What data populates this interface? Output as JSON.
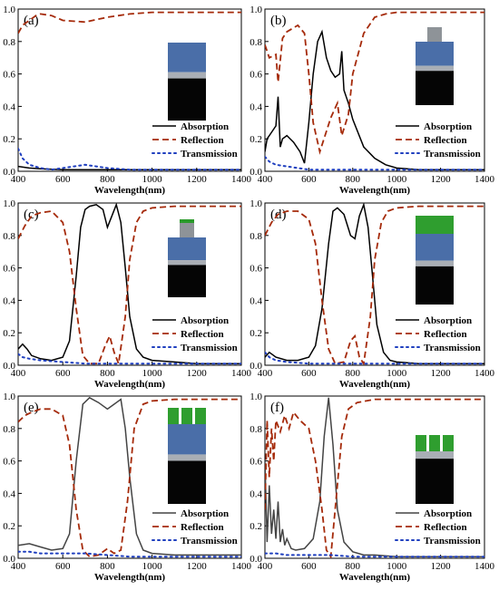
{
  "chart_data": [
    {
      "type": "line",
      "panel": "(a)",
      "xlabel": "Wavelength(nm)",
      "ylabel": "",
      "xlim": [
        400,
        1400
      ],
      "ylim": [
        0,
        1.0
      ],
      "xticks": [
        "400",
        "600",
        "800",
        "1000",
        "1200",
        "1400"
      ],
      "yticks": [
        "0.0",
        "0.2",
        "0.4",
        "0.6",
        "0.8",
        "1.0"
      ],
      "legend": "bottom-right",
      "series": [
        {
          "name": "Absorption",
          "style": "solid",
          "color": "#000000",
          "x": [
            400,
            450,
            500,
            600,
            700,
            800,
            900,
            1000,
            1200,
            1400
          ],
          "y": [
            0.03,
            0.02,
            0.015,
            0.01,
            0.01,
            0.01,
            0.01,
            0.01,
            0.01,
            0.01
          ]
        },
        {
          "name": "Reflection",
          "style": "dash",
          "color": "#a52a0a",
          "x": [
            400,
            420,
            450,
            480,
            500,
            550,
            600,
            700,
            800,
            900,
            1000,
            1200,
            1400
          ],
          "y": [
            0.85,
            0.9,
            0.93,
            0.96,
            0.97,
            0.96,
            0.93,
            0.92,
            0.95,
            0.97,
            0.98,
            0.98,
            0.98
          ]
        },
        {
          "name": "Transmission",
          "style": "dot",
          "color": "#1f3fbf",
          "x": [
            400,
            420,
            450,
            500,
            550,
            600,
            650,
            700,
            750,
            800,
            900,
            1000,
            1200,
            1400
          ],
          "y": [
            0.14,
            0.08,
            0.04,
            0.02,
            0.01,
            0.02,
            0.03,
            0.04,
            0.03,
            0.02,
            0.01,
            0.01,
            0.01,
            0.01
          ]
        }
      ]
    },
    {
      "type": "line",
      "panel": "(b)",
      "xlabel": "Wavelength(nm)",
      "ylabel": "",
      "xlim": [
        400,
        1400
      ],
      "ylim": [
        0,
        1.0
      ],
      "xticks": [
        "400",
        "600",
        "800",
        "1000",
        "1200",
        "1400"
      ],
      "yticks": [
        "0.0",
        "0.2",
        "0.4",
        "0.6",
        "0.8",
        "1.0"
      ],
      "legend": "bottom-right",
      "series": [
        {
          "name": "Absorption",
          "style": "solid",
          "color": "#000000",
          "x": [
            400,
            410,
            430,
            450,
            460,
            470,
            480,
            500,
            530,
            560,
            580,
            600,
            620,
            640,
            660,
            680,
            700,
            720,
            740,
            750,
            760,
            780,
            800,
            850,
            900,
            950,
            1000,
            1100,
            1200,
            1400
          ],
          "y": [
            0.12,
            0.2,
            0.24,
            0.28,
            0.46,
            0.15,
            0.2,
            0.22,
            0.18,
            0.12,
            0.05,
            0.3,
            0.6,
            0.8,
            0.86,
            0.7,
            0.62,
            0.58,
            0.6,
            0.74,
            0.5,
            0.42,
            0.32,
            0.15,
            0.08,
            0.04,
            0.02,
            0.01,
            0.01,
            0.01
          ]
        },
        {
          "name": "Reflection",
          "style": "dash",
          "color": "#a52a0a",
          "x": [
            400,
            420,
            450,
            460,
            480,
            500,
            550,
            580,
            600,
            620,
            650,
            700,
            730,
            750,
            780,
            800,
            850,
            900,
            950,
            1000,
            1100,
            1200,
            1400
          ],
          "y": [
            0.78,
            0.7,
            0.72,
            0.55,
            0.82,
            0.86,
            0.9,
            0.85,
            0.6,
            0.3,
            0.12,
            0.33,
            0.42,
            0.22,
            0.35,
            0.6,
            0.85,
            0.95,
            0.97,
            0.98,
            0.98,
            0.98,
            0.98
          ]
        },
        {
          "name": "Transmission",
          "style": "dot",
          "color": "#1f3fbf",
          "x": [
            400,
            420,
            450,
            500,
            550,
            600,
            650,
            700,
            800,
            900,
            1000,
            1200,
            1400
          ],
          "y": [
            0.09,
            0.06,
            0.04,
            0.03,
            0.02,
            0.01,
            0.01,
            0.01,
            0.01,
            0.01,
            0.01,
            0.01,
            0.01
          ]
        }
      ]
    },
    {
      "type": "line",
      "panel": "(c)",
      "xlabel": "Wavelength(nm)",
      "ylabel": "",
      "xlim": [
        400,
        1400
      ],
      "ylim": [
        0,
        1.0
      ],
      "xticks": [
        "400",
        "600",
        "800",
        "1000",
        "1200",
        "1400"
      ],
      "yticks": [
        "0.0",
        "0.2",
        "0.4",
        "0.6",
        "0.8",
        "1.0"
      ],
      "legend": "bottom-right",
      "series": [
        {
          "name": "Absorption",
          "style": "solid",
          "color": "#000000",
          "x": [
            400,
            420,
            440,
            460,
            500,
            550,
            600,
            630,
            660,
            680,
            700,
            720,
            750,
            780,
            800,
            820,
            840,
            860,
            880,
            900,
            930,
            960,
            1000,
            1100,
            1200,
            1400
          ],
          "y": [
            0.1,
            0.13,
            0.1,
            0.06,
            0.04,
            0.03,
            0.05,
            0.15,
            0.55,
            0.85,
            0.96,
            0.98,
            0.99,
            0.96,
            0.85,
            0.92,
            0.99,
            0.88,
            0.6,
            0.3,
            0.1,
            0.05,
            0.03,
            0.02,
            0.01,
            0.01
          ]
        },
        {
          "name": "Reflection",
          "style": "dash",
          "color": "#a52a0a",
          "x": [
            400,
            430,
            460,
            500,
            550,
            600,
            630,
            660,
            690,
            720,
            760,
            790,
            810,
            830,
            850,
            880,
            900,
            930,
            960,
            1000,
            1100,
            1200,
            1400
          ],
          "y": [
            0.78,
            0.86,
            0.92,
            0.94,
            0.95,
            0.88,
            0.7,
            0.35,
            0.06,
            0.01,
            0.01,
            0.12,
            0.18,
            0.08,
            0.01,
            0.3,
            0.65,
            0.88,
            0.95,
            0.97,
            0.98,
            0.98,
            0.98
          ]
        },
        {
          "name": "Transmission",
          "style": "dot",
          "color": "#1f3fbf",
          "x": [
            400,
            420,
            450,
            500,
            600,
            700,
            800,
            900,
            1000,
            1200,
            1400
          ],
          "y": [
            0.07,
            0.05,
            0.04,
            0.03,
            0.02,
            0.01,
            0.01,
            0.01,
            0.01,
            0.01,
            0.01
          ]
        }
      ]
    },
    {
      "type": "line",
      "panel": "(d)",
      "xlabel": "Wavelength(nm)",
      "ylabel": "",
      "xlim": [
        400,
        1400
      ],
      "ylim": [
        0,
        1.0
      ],
      "xticks": [
        "400",
        "600",
        "800",
        "1000",
        "1200",
        "1400"
      ],
      "yticks": [
        "0.0",
        "0.2",
        "0.4",
        "0.6",
        "0.8",
        "1.0"
      ],
      "legend": "bottom-right",
      "series": [
        {
          "name": "Absorption",
          "style": "solid",
          "color": "#000000",
          "x": [
            400,
            420,
            450,
            500,
            550,
            600,
            630,
            660,
            690,
            710,
            730,
            760,
            790,
            810,
            830,
            850,
            870,
            890,
            910,
            940,
            970,
            1000,
            1100,
            1200,
            1400
          ],
          "y": [
            0.05,
            0.08,
            0.05,
            0.03,
            0.03,
            0.05,
            0.12,
            0.35,
            0.75,
            0.95,
            0.97,
            0.93,
            0.8,
            0.78,
            0.92,
            0.99,
            0.85,
            0.55,
            0.25,
            0.08,
            0.03,
            0.02,
            0.01,
            0.01,
            0.01
          ]
        },
        {
          "name": "Reflection",
          "style": "dash",
          "color": "#a52a0a",
          "x": [
            400,
            430,
            460,
            500,
            550,
            600,
            630,
            660,
            690,
            720,
            760,
            790,
            810,
            830,
            850,
            880,
            900,
            930,
            960,
            1000,
            1100,
            1200,
            1400
          ],
          "y": [
            0.8,
            0.88,
            0.93,
            0.95,
            0.95,
            0.9,
            0.75,
            0.4,
            0.1,
            0.01,
            0.02,
            0.15,
            0.18,
            0.05,
            0.01,
            0.3,
            0.65,
            0.88,
            0.95,
            0.97,
            0.98,
            0.98,
            0.98
          ]
        },
        {
          "name": "Transmission",
          "style": "dot",
          "color": "#1f3fbf",
          "x": [
            400,
            420,
            450,
            500,
            600,
            700,
            800,
            900,
            1000,
            1200,
            1400
          ],
          "y": [
            0.08,
            0.05,
            0.03,
            0.02,
            0.01,
            0.01,
            0.01,
            0.01,
            0.01,
            0.01,
            0.01
          ]
        }
      ]
    },
    {
      "type": "line",
      "panel": "(e)",
      "xlabel": "Wavelength(nm)",
      "ylabel": "",
      "xlim": [
        400,
        1400
      ],
      "ylim": [
        0,
        1.0
      ],
      "xticks": [
        "400",
        "600",
        "800",
        "1000",
        "1200",
        "1400"
      ],
      "yticks": [
        "0.0",
        "0.2",
        "0.4",
        "0.6",
        "0.8",
        "1.0"
      ],
      "legend": "bottom-right",
      "series": [
        {
          "name": "Absorption",
          "style": "solid",
          "color": "#444444",
          "x": [
            400,
            450,
            500,
            550,
            600,
            630,
            660,
            690,
            720,
            760,
            800,
            830,
            860,
            880,
            900,
            930,
            960,
            1000,
            1100,
            1200,
            1400
          ],
          "y": [
            0.08,
            0.09,
            0.07,
            0.05,
            0.06,
            0.15,
            0.6,
            0.95,
            0.99,
            0.96,
            0.92,
            0.95,
            0.98,
            0.8,
            0.5,
            0.15,
            0.05,
            0.03,
            0.02,
            0.02,
            0.02
          ]
        },
        {
          "name": "Reflection",
          "style": "dash",
          "color": "#a52a0a",
          "x": [
            400,
            430,
            460,
            500,
            550,
            600,
            630,
            660,
            690,
            720,
            760,
            800,
            830,
            860,
            890,
            920,
            960,
            1000,
            1100,
            1200,
            1400
          ],
          "y": [
            0.84,
            0.88,
            0.9,
            0.92,
            0.92,
            0.88,
            0.7,
            0.3,
            0.05,
            0.01,
            0.02,
            0.06,
            0.03,
            0.05,
            0.35,
            0.8,
            0.95,
            0.97,
            0.98,
            0.98,
            0.98
          ]
        },
        {
          "name": "Transmission",
          "style": "dot",
          "color": "#1f3fbf",
          "x": [
            400,
            450,
            500,
            600,
            700,
            800,
            900,
            1000,
            1200,
            1400
          ],
          "y": [
            0.04,
            0.04,
            0.03,
            0.03,
            0.03,
            0.02,
            0.01,
            0.01,
            0.01,
            0.01
          ]
        }
      ]
    },
    {
      "type": "line",
      "panel": "(f)",
      "xlabel": "Wavelength(nm)",
      "ylabel": "",
      "xlim": [
        400,
        1400
      ],
      "ylim": [
        0,
        1.0
      ],
      "xticks": [
        "400",
        "600",
        "800",
        "1000",
        "1200",
        "1400"
      ],
      "yticks": [
        "0.0",
        "0.2",
        "0.4",
        "0.6",
        "0.8",
        "1.0"
      ],
      "legend": "bottom-right",
      "series": [
        {
          "name": "Absorption",
          "style": "solid",
          "color": "#444444",
          "x": [
            400,
            410,
            420,
            430,
            440,
            450,
            460,
            470,
            480,
            490,
            500,
            520,
            540,
            580,
            620,
            650,
            670,
            690,
            710,
            730,
            760,
            800,
            850,
            900,
            1000,
            1200,
            1400
          ],
          "y": [
            0.6,
            0.1,
            0.45,
            0.15,
            0.3,
            0.12,
            0.35,
            0.1,
            0.18,
            0.08,
            0.12,
            0.06,
            0.05,
            0.06,
            0.12,
            0.35,
            0.75,
            0.99,
            0.7,
            0.3,
            0.1,
            0.04,
            0.02,
            0.02,
            0.01,
            0.01,
            0.01
          ]
        },
        {
          "name": "Reflection",
          "style": "dash",
          "color": "#a52a0a",
          "x": [
            400,
            410,
            420,
            430,
            440,
            450,
            470,
            490,
            510,
            530,
            560,
            600,
            630,
            660,
            680,
            700,
            720,
            750,
            780,
            820,
            900,
            1000,
            1200,
            1400
          ],
          "y": [
            0.3,
            0.85,
            0.5,
            0.8,
            0.6,
            0.85,
            0.78,
            0.88,
            0.8,
            0.9,
            0.85,
            0.8,
            0.6,
            0.3,
            0.05,
            0.01,
            0.3,
            0.75,
            0.92,
            0.96,
            0.98,
            0.98,
            0.98,
            0.98
          ]
        },
        {
          "name": "Transmission",
          "style": "dot",
          "color": "#1f3fbf",
          "x": [
            400,
            450,
            500,
            600,
            700,
            800,
            900,
            1000,
            1200,
            1400
          ],
          "y": [
            0.03,
            0.03,
            0.02,
            0.02,
            0.02,
            0.01,
            0.01,
            0.01,
            0.01,
            0.01
          ]
        }
      ]
    }
  ],
  "insets": [
    {
      "layers": [
        "#4a6ea8",
        "#a9aeb5",
        "#050505"
      ],
      "top": "none"
    },
    {
      "layers": [
        "#4a6ea8",
        "#a9aeb5",
        "#050505"
      ],
      "top": "gray-pillar"
    },
    {
      "layers": [
        "#4a6ea8",
        "#a9aeb5",
        "#050505"
      ],
      "top": "gray-pillar-green-cap"
    },
    {
      "layers": [
        "#4a6ea8",
        "#a9aeb5",
        "#050505"
      ],
      "top": "green-film"
    },
    {
      "layers": [
        "#4a6ea8",
        "#a9aeb5",
        "#050505"
      ],
      "top": "green-grating"
    },
    {
      "layers": [
        "#a9aeb5",
        "#050505"
      ],
      "top": "green-grating"
    }
  ]
}
